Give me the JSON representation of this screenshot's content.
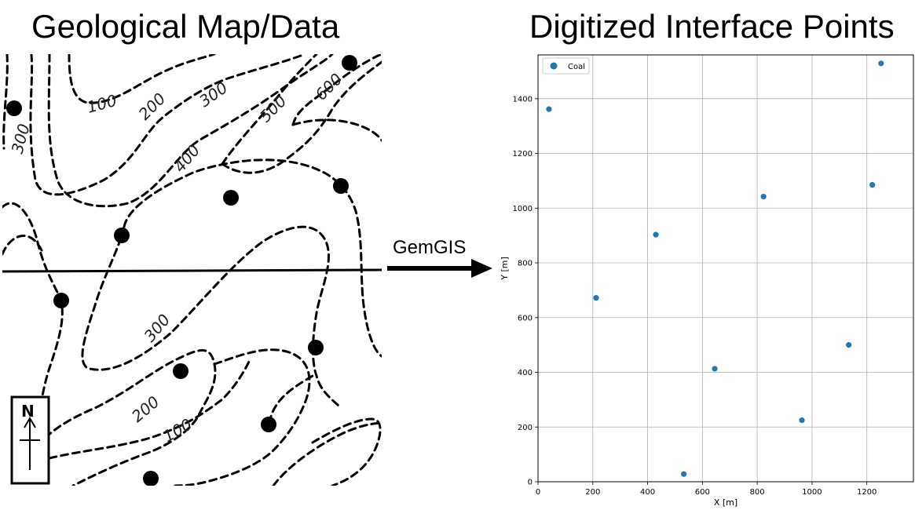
{
  "titles": {
    "left": "Geological Map/Data",
    "right": "Digitized Interface Points"
  },
  "map": {
    "contour_labels": [
      "100",
      "200",
      "300",
      "300",
      "400",
      "500",
      "600",
      "300",
      "200",
      "100"
    ],
    "north_label": "N"
  },
  "arrow": {
    "label": "GemGIS"
  },
  "chart_data": {
    "type": "scatter",
    "xlabel": "X [m]",
    "ylabel": "Y [m]",
    "xlim": [
      0,
      1370
    ],
    "ylim": [
      0,
      1560
    ],
    "xticks": [
      0,
      200,
      400,
      600,
      800,
      1000,
      1200
    ],
    "yticks": [
      0,
      200,
      400,
      600,
      800,
      1000,
      1200,
      1400
    ],
    "grid": true,
    "legend_position": "top-left",
    "series": [
      {
        "name": "Coal",
        "color": "#1f77b4",
        "points": [
          {
            "x": 40,
            "y": 1362
          },
          {
            "x": 1252,
            "y": 1529
          },
          {
            "x": 823,
            "y": 1042
          },
          {
            "x": 1220,
            "y": 1085
          },
          {
            "x": 430,
            "y": 903
          },
          {
            "x": 212,
            "y": 672
          },
          {
            "x": 645,
            "y": 413
          },
          {
            "x": 1134,
            "y": 500
          },
          {
            "x": 963,
            "y": 225
          },
          {
            "x": 532,
            "y": 28
          }
        ]
      }
    ]
  }
}
